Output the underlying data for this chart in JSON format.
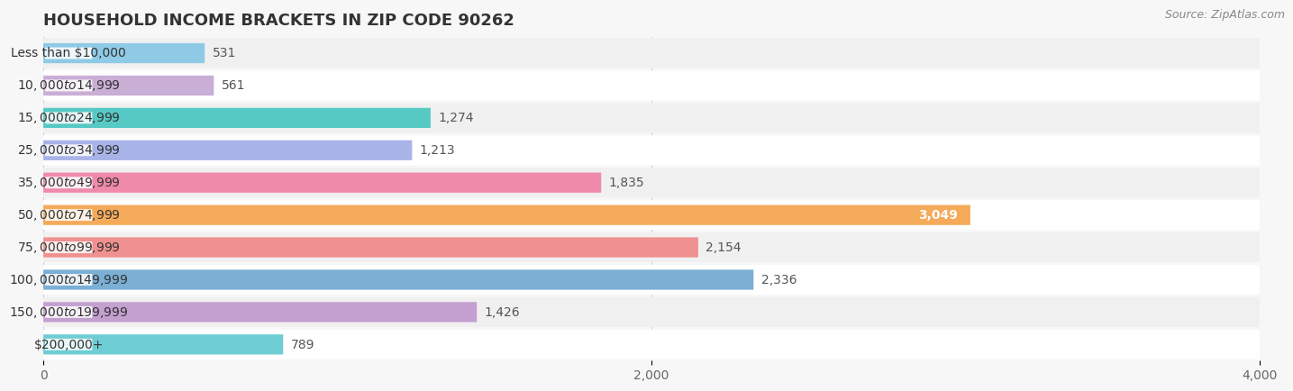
{
  "title": "HOUSEHOLD INCOME BRACKETS IN ZIP CODE 90262",
  "source": "Source: ZipAtlas.com",
  "categories": [
    "Less than $10,000",
    "$10,000 to $14,999",
    "$15,000 to $24,999",
    "$25,000 to $34,999",
    "$35,000 to $49,999",
    "$50,000 to $74,999",
    "$75,000 to $99,999",
    "$100,000 to $149,999",
    "$150,000 to $199,999",
    "$200,000+"
  ],
  "values": [
    531,
    561,
    1274,
    1213,
    1835,
    3049,
    2154,
    2336,
    1426,
    789
  ],
  "bar_colors": [
    "#8ECAE6",
    "#C9AED6",
    "#56C9C4",
    "#A8B4E8",
    "#F08AAA",
    "#F5AA5A",
    "#F09090",
    "#7BAFD4",
    "#C4A0D0",
    "#6ECDD4"
  ],
  "value_label_inside": [
    false,
    false,
    false,
    false,
    false,
    true,
    false,
    false,
    false,
    false
  ],
  "xlim_max": 4000,
  "bg_color": "#f7f7f7",
  "row_colors": [
    "#ffffff",
    "#f0f0f0"
  ],
  "title_fontsize": 13,
  "source_fontsize": 9,
  "bar_label_fontsize": 10,
  "val_label_fontsize": 10,
  "tick_fontsize": 10
}
